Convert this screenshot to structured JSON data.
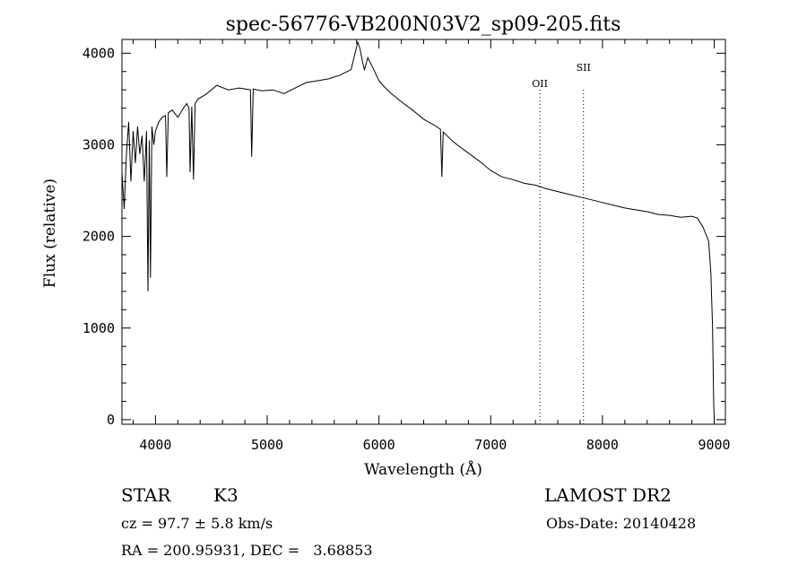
{
  "chart_data": {
    "type": "line",
    "title": "spec-56776-VB200N03V2_sp09-205.fits",
    "xlabel": "Wavelength (Å)",
    "ylabel": "Flux (relative)",
    "xlim": [
      3700,
      9100
    ],
    "ylim": [
      -50,
      4150
    ],
    "xticks": [
      4000,
      5000,
      6000,
      7000,
      8000,
      9000
    ],
    "yticks": [
      0,
      1000,
      2000,
      3000,
      4000
    ],
    "grid": false,
    "line_markers": [
      {
        "label": "OII",
        "wavelength": 7440
      },
      {
        "label": "SII",
        "wavelength": 7830
      }
    ],
    "series": [
      {
        "x": [
          3700,
          3720,
          3740,
          3760,
          3780,
          3800,
          3820,
          3840,
          3860,
          3880,
          3900,
          3920,
          3933,
          3945,
          3955,
          3968,
          3985,
          4000,
          4030,
          4060,
          4090,
          4101,
          4115,
          4150,
          4200,
          4250,
          4280,
          4300,
          4310,
          4325,
          4340,
          4355,
          4380,
          4450,
          4550,
          4650,
          4750,
          4850,
          4861,
          4875,
          4950,
          5050,
          5150,
          5250,
          5350,
          5450,
          5550,
          5650,
          5750,
          5790,
          5810,
          5830,
          5850,
          5870,
          5900,
          5950,
          6000,
          6050,
          6100,
          6200,
          6300,
          6400,
          6500,
          6550,
          6563,
          6575,
          6600,
          6650,
          6700,
          6800,
          6900,
          7000,
          7100,
          7200,
          7300,
          7400,
          7500,
          7600,
          7700,
          7800,
          7900,
          8000,
          8100,
          8200,
          8300,
          8400,
          8500,
          8600,
          8700,
          8800,
          8850,
          8900,
          8950,
          8970,
          8985,
          8995,
          9000
        ],
        "y": [
          2700,
          2300,
          2900,
          3250,
          2600,
          3150,
          2800,
          3200,
          2900,
          3100,
          2600,
          3150,
          1400,
          3050,
          1550,
          3200,
          3000,
          3150,
          3250,
          3300,
          3320,
          2650,
          3350,
          3380,
          3300,
          3400,
          3450,
          3400,
          2700,
          3420,
          2620,
          3450,
          3500,
          3550,
          3650,
          3600,
          3620,
          3600,
          2870,
          3610,
          3590,
          3600,
          3560,
          3620,
          3680,
          3700,
          3720,
          3760,
          3820,
          4020,
          4120,
          4050,
          3920,
          3820,
          3950,
          3830,
          3700,
          3630,
          3570,
          3470,
          3380,
          3280,
          3210,
          3170,
          2650,
          3140,
          3110,
          3050,
          3000,
          2910,
          2820,
          2720,
          2650,
          2620,
          2580,
          2560,
          2520,
          2490,
          2460,
          2430,
          2400,
          2370,
          2340,
          2310,
          2290,
          2270,
          2240,
          2230,
          2210,
          2220,
          2200,
          2100,
          1950,
          1600,
          1000,
          200,
          10
        ]
      }
    ]
  },
  "info": {
    "obj_class": "STAR",
    "subclass": "K3",
    "survey": "LAMOST DR2",
    "cz": "cz = 97.7 ± 5.8 km/s",
    "obs_date": "Obs-Date: 20140428",
    "radec": "RA = 200.95931, DEC =   3.68853"
  }
}
